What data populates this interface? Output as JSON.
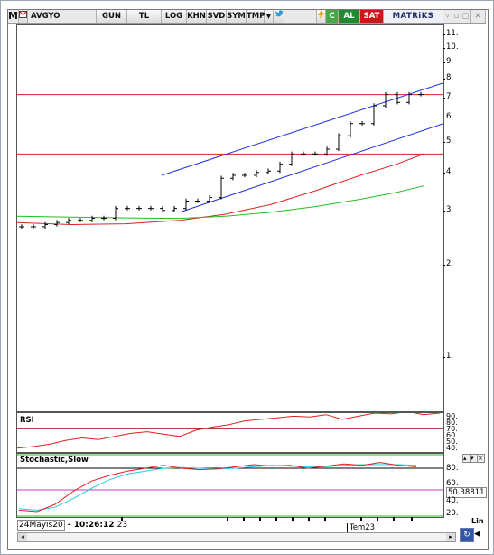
{
  "toolbar": {
    "logo": "M",
    "symbol": "AVGYO",
    "period": "GUN",
    "currency": "TL",
    "buttons": [
      "LOG",
      "KHN",
      "SVD",
      "SYM",
      "TMP"
    ],
    "buy_label": "AL",
    "sell_label": "SAT",
    "brand": "MATRiKS",
    "c_label": "C"
  },
  "price_axis": {
    "labels": [
      "11.",
      "10.",
      "9.",
      "8.",
      "7.",
      "6.",
      "5.",
      "4.",
      "3.",
      "2.",
      "1."
    ]
  },
  "rsi": {
    "title": "RSI",
    "axis": [
      "90.",
      "80.",
      "70.",
      "60.",
      "50.",
      "40."
    ]
  },
  "stoch": {
    "title": "Stochastic,Slow",
    "axis": [
      "80.",
      "60.",
      "50.38811",
      "40.",
      "20."
    ],
    "value": "50.38811"
  },
  "status": {
    "date": "24Mayıs20",
    "time": "- 10:26:12",
    "time_suffix": "23",
    "month_label": "Tem23",
    "lin_label": "Lin"
  },
  "colors": {
    "hline": "#e02020",
    "channel": "#2030e0",
    "ma_red": "#e02020",
    "ma_green": "#20c020",
    "stoch_cyan": "#20d0e0"
  },
  "chart_data": {
    "type": "line",
    "price_scale": "log",
    "price_ylim": [
      1,
      11
    ],
    "horizontal_lines": [
      8.2,
      6.8,
      5.1
    ],
    "bars_approx_close": [
      2.85,
      2.85,
      2.9,
      2.95,
      3.0,
      3.0,
      3.05,
      3.05,
      3.3,
      3.3,
      3.3,
      3.3,
      3.25,
      3.3,
      3.5,
      3.5,
      3.6,
      4.2,
      4.3,
      4.3,
      4.4,
      4.45,
      4.7,
      5.1,
      5.1,
      5.1,
      5.3,
      5.9,
      6.5,
      6.5,
      7.5,
      8.2,
      7.7,
      8.2,
      8.2
    ],
    "rsi_range": [
      40,
      90
    ],
    "stoch_range": [
      20,
      80
    ]
  }
}
